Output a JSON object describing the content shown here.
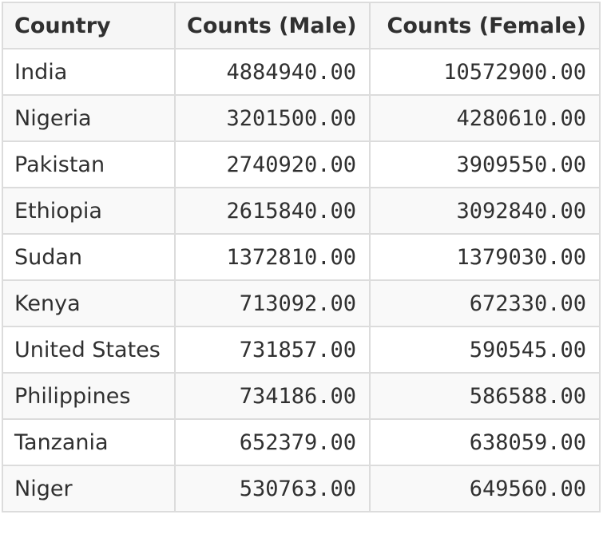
{
  "chart_data": {
    "type": "table",
    "columns": [
      "Country",
      "Counts (Male)",
      "Counts (Female)"
    ],
    "rows": [
      [
        "India",
        "4884940.00",
        "10572900.00"
      ],
      [
        "Nigeria",
        "3201500.00",
        "4280610.00"
      ],
      [
        "Pakistan",
        "2740920.00",
        "3909550.00"
      ],
      [
        "Ethiopia",
        "2615840.00",
        "3092840.00"
      ],
      [
        "Sudan",
        "1372810.00",
        "1379030.00"
      ],
      [
        "Kenya",
        "713092.00",
        "672330.00"
      ],
      [
        "United States",
        "731857.00",
        "590545.00"
      ],
      [
        "Philippines",
        "734186.00",
        "586588.00"
      ],
      [
        "Tanzania",
        "652379.00",
        "638059.00"
      ],
      [
        "Niger",
        "530763.00",
        "649560.00"
      ]
    ]
  }
}
